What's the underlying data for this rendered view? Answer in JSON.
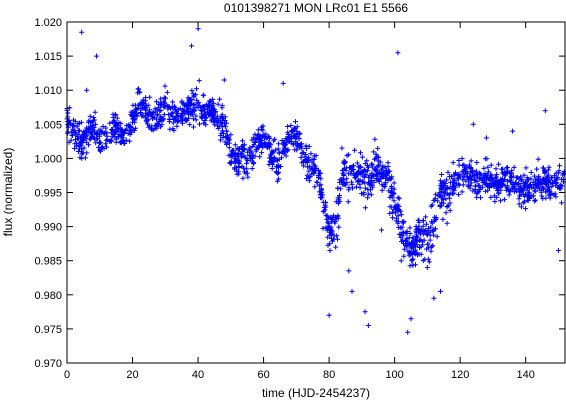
{
  "chart_data": {
    "type": "scatter",
    "title": "0101398271 MON LRc01 E1 5566",
    "xlabel": "time (HJD-2454237)",
    "ylabel": "flux (normalized)",
    "xlim": [
      0,
      152
    ],
    "ylim": [
      0.97,
      1.02
    ],
    "x_ticks": [
      "0",
      "20",
      "40",
      "60",
      "80",
      "100",
      "120",
      "140"
    ],
    "y_ticks": [
      "0.970",
      "0.975",
      "0.980",
      "0.985",
      "0.990",
      "0.995",
      "1.000",
      "1.005",
      "1.010",
      "1.015",
      "1.020"
    ],
    "grid": false,
    "legend": "none",
    "marker": "plus",
    "point_color": "#0000ff",
    "series": [
      {
        "x": [
          0,
          2,
          4,
          6,
          8,
          10,
          12,
          14,
          16,
          18,
          20,
          22,
          24,
          26,
          28,
          30,
          32,
          34,
          36,
          38,
          40,
          42,
          44,
          46,
          48,
          50,
          52,
          54,
          56,
          58,
          60,
          62,
          64,
          66,
          68,
          70,
          72,
          74,
          76,
          78,
          80,
          82,
          84,
          86,
          88,
          90,
          92,
          94,
          96,
          98,
          100,
          102,
          104,
          106,
          108,
          110,
          112,
          114,
          116,
          118,
          120,
          122,
          124,
          126,
          128,
          130,
          132,
          134,
          136,
          138,
          140,
          142,
          144,
          146,
          148,
          150,
          152
        ],
        "y": [
          1.0055,
          1.0035,
          1.002,
          1.0035,
          1.0045,
          1.0025,
          1.0035,
          1.005,
          1.004,
          1.003,
          1.0055,
          1.0085,
          1.007,
          1.005,
          1.0065,
          1.0075,
          1.006,
          1.0065,
          1.007,
          1.0075,
          1.008,
          1.0065,
          1.0075,
          1.0055,
          1.0045,
          1.001,
          0.9995,
          1.0,
          1.0005,
          1.0025,
          1.003,
          1.001,
          0.999,
          1.001,
          1.0035,
          1.003,
          1.001,
          0.9995,
          0.9985,
          0.994,
          0.9895,
          0.9905,
          0.9975,
          0.9975,
          0.9975,
          0.998,
          0.9965,
          0.9985,
          0.998,
          0.997,
          0.9935,
          0.9895,
          0.987,
          0.987,
          0.9885,
          0.9885,
          0.9905,
          0.9945,
          0.996,
          0.9965,
          0.9975,
          0.9975,
          0.9965,
          0.9965,
          0.9975,
          0.996,
          0.9965,
          0.9965,
          0.9965,
          0.9955,
          0.9955,
          0.9955,
          0.997,
          0.9965,
          0.9955,
          0.9965,
          0.9965
        ]
      },
      {
        "x": [
          4.5,
          9,
          38,
          40,
          101,
          104,
          6,
          48,
          66,
          80,
          82,
          86,
          87,
          91,
          92,
          96,
          102,
          105,
          110,
          112,
          114,
          116,
          118,
          124,
          128,
          136,
          146,
          150
        ],
        "y": [
          1.0185,
          1.015,
          1.0165,
          1.019,
          1.0155,
          0.9745,
          1.01,
          1.0115,
          1.011,
          0.977,
          0.987,
          0.9835,
          0.9805,
          0.9775,
          0.9755,
          0.9895,
          0.985,
          0.9765,
          0.984,
          0.9795,
          0.9805,
          0.9905,
          0.9955,
          1.005,
          1.003,
          1.004,
          1.007,
          0.9865
        ]
      }
    ]
  }
}
